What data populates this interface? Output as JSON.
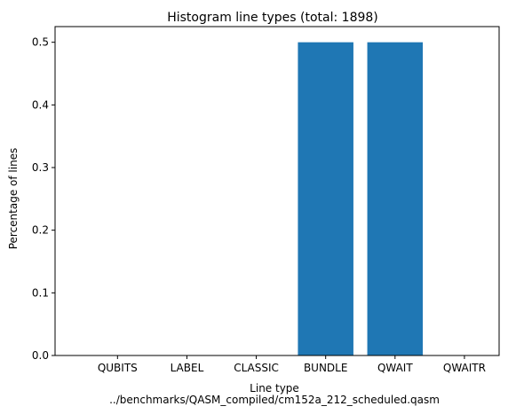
{
  "chart_data": {
    "type": "bar",
    "title": "Histogram line types (total: 1898)",
    "xlabel": "Line type",
    "xlabel_sub": "../benchmarks/QASM_compiled/cm152a_212_scheduled.qasm",
    "ylabel": "Percentage of lines",
    "categories": [
      "QUBITS",
      "LABEL",
      "CLASSIC",
      "BUNDLE",
      "QWAIT",
      "QWAITR"
    ],
    "values": [
      0.0,
      0.0,
      0.0,
      0.5,
      0.5,
      0.0
    ],
    "ylim": [
      0,
      0.525
    ],
    "yticks": [
      0.0,
      0.1,
      0.2,
      0.3,
      0.4,
      0.5
    ],
    "ytick_labels": [
      "0.0",
      "0.1",
      "0.2",
      "0.3",
      "0.4",
      "0.5"
    ],
    "bar_color": "#1f77b4",
    "grid": false,
    "legend": "none"
  }
}
